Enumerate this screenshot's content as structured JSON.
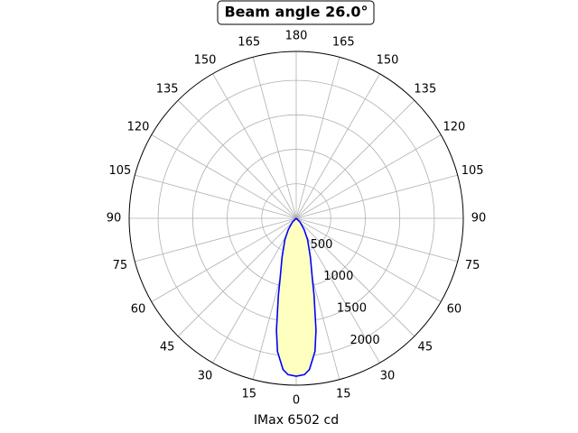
{
  "chart_data": {
    "type": "polar",
    "title": "Beam angle 26.0°",
    "xlabel": "IMax 6502 cd",
    "theta": [
      -60,
      -45,
      -35,
      -28,
      -20,
      -15,
      -13,
      -10,
      -8,
      -5,
      -3,
      0,
      3,
      5,
      8,
      10,
      13,
      15,
      20,
      28,
      35,
      45,
      60
    ],
    "values": [
      0,
      80,
      200,
      350,
      600,
      900,
      1150,
      1650,
      1950,
      2200,
      2270,
      2290,
      2270,
      2200,
      1950,
      1650,
      1150,
      900,
      600,
      350,
      200,
      80,
      0
    ],
    "color": "#0000ff",
    "fill": "#ffffc0",
    "rlim": [
      0,
      2420
    ],
    "rticks": [
      500,
      1000,
      1500,
      2000
    ],
    "thetaticks": [
      0,
      15,
      30,
      45,
      60,
      75,
      90,
      105,
      120,
      135,
      150,
      165,
      180
    ],
    "grid": true
  }
}
